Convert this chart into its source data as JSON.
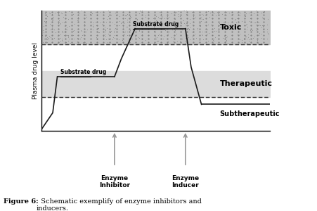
{
  "fig_width": 4.52,
  "fig_height": 3.0,
  "dpi": 100,
  "bg_color": "#ffffff",
  "toxic_zone_color": "#c0c0c0",
  "therapeutic_zone_color": "#dcdcdc",
  "toxic_level": 7.2,
  "therapeutic_upper": 5.0,
  "therapeutic_lower": 2.8,
  "y_max": 10.0,
  "y_min": 0.0,
  "x_max": 10.0,
  "x_min": 0.0,
  "ylabel": "Plasma drug level",
  "toxic_label": "Toxic",
  "therapeutic_label": "Therapeutic",
  "subtherapeutic_label": "Subtherapeutic",
  "substrate_drug_label_1": "Substrate drug",
  "substrate_drug_label_2": "Substrate drug",
  "enzyme_inhibitor_label": "Enzyme\nInhibitor",
  "enzyme_inducer_label": "Enzyme\nInducer",
  "figure_caption_bold": "Figure 6:",
  "figure_caption_normal": "  Schematic exemplify of enzyme inhibitors and\ninducers.",
  "line_color": "#1a1a1a",
  "arrow_color": "#999999",
  "dashed_color": "#333333",
  "inhibitor_x": 3.2,
  "inducer_x": 6.3,
  "flat1_start": 0.7,
  "flat1_y": 4.5,
  "peak_y": 8.5,
  "final_y": 2.2
}
